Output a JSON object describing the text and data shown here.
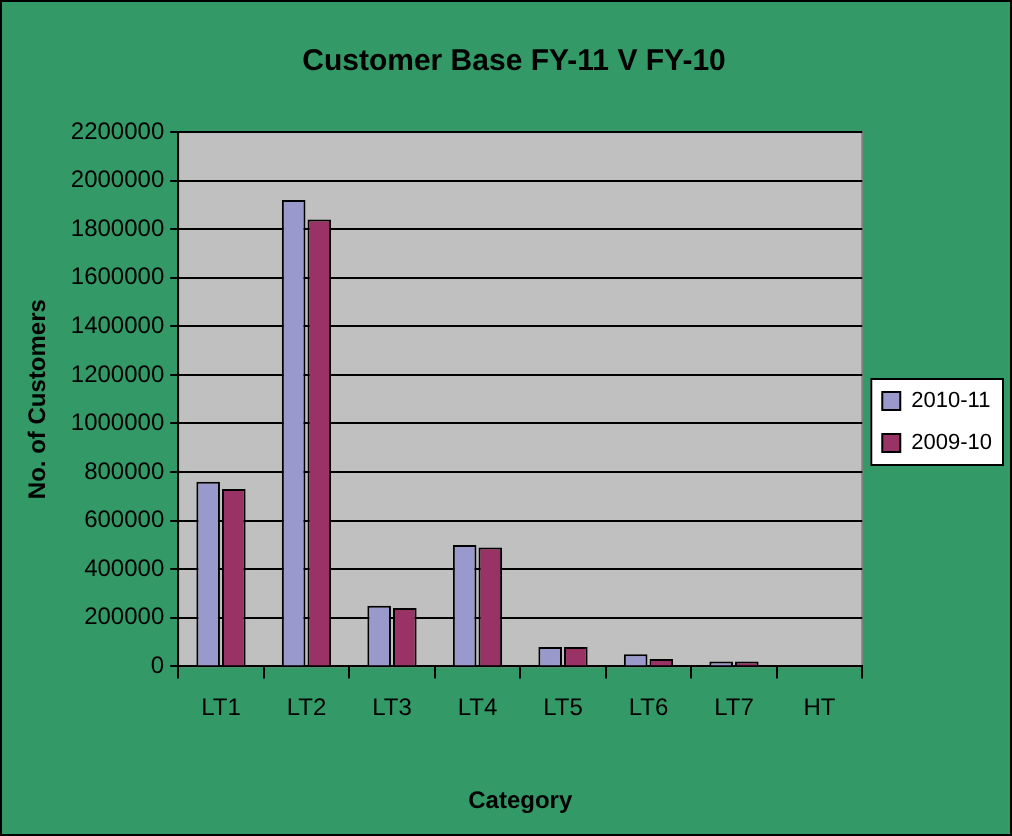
{
  "chart_data": {
    "type": "bar",
    "title": "Customer Base FY-11 V FY-10",
    "xlabel": "Category",
    "ylabel": "No. of Customers",
    "categories": [
      "LT1",
      "LT2",
      "LT3",
      "LT4",
      "LT5",
      "LT6",
      "LT7",
      "HT"
    ],
    "series": [
      {
        "name": "2010-11",
        "color": "#9999cc",
        "values": [
          760000,
          1920000,
          250000,
          500000,
          80000,
          50000,
          20000,
          0
        ]
      },
      {
        "name": "2009-10",
        "color": "#993366",
        "values": [
          730000,
          1840000,
          240000,
          490000,
          80000,
          30000,
          20000,
          0
        ]
      }
    ],
    "ylim": [
      0,
      2200000
    ],
    "yticks": [
      0,
      200000,
      400000,
      600000,
      800000,
      1000000,
      1200000,
      1400000,
      1600000,
      1800000,
      2000000,
      2200000
    ],
    "grid": "y",
    "legend": "right"
  }
}
